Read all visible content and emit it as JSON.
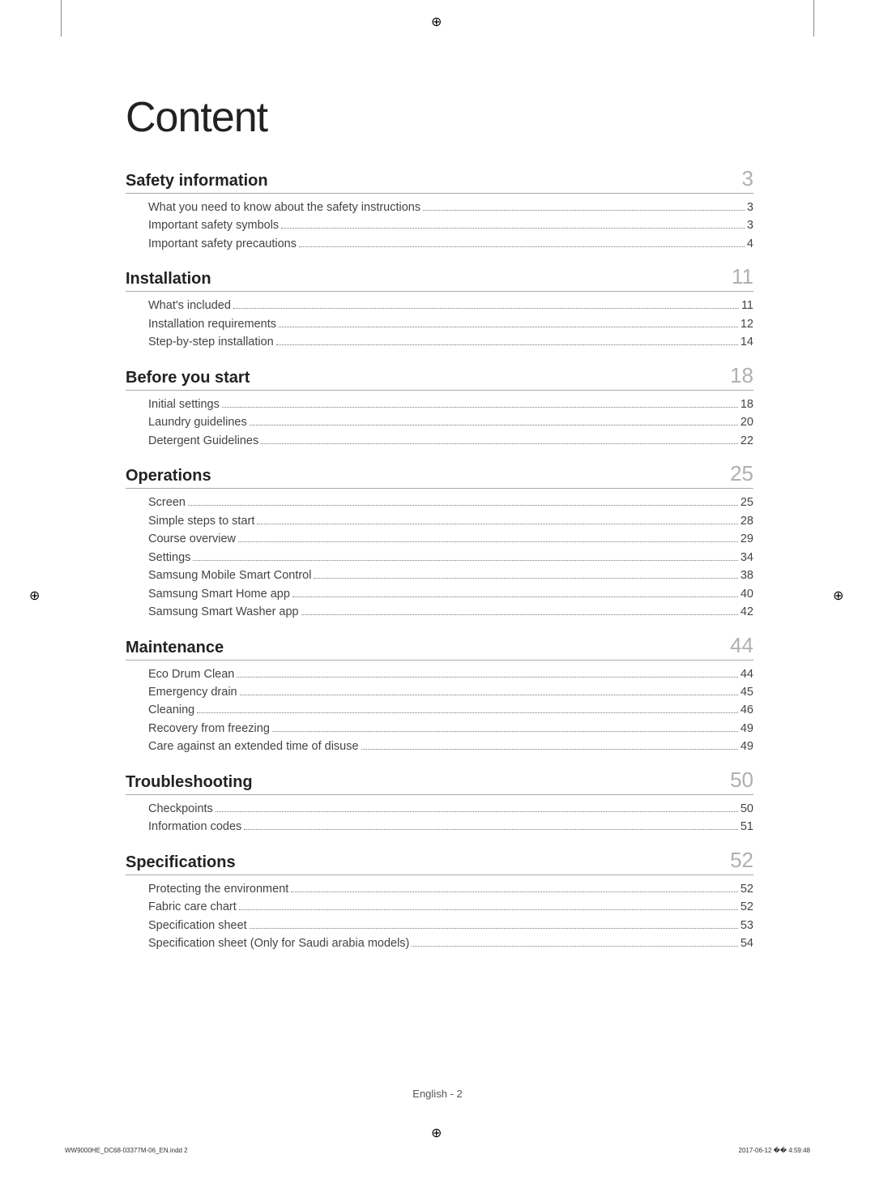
{
  "title": "Content",
  "sections": [
    {
      "title": "Safety information",
      "page": "3",
      "items": [
        {
          "label": "What you need to know about the safety instructions",
          "page": "3"
        },
        {
          "label": "Important safety symbols",
          "page": "3"
        },
        {
          "label": "Important safety precautions",
          "page": "4"
        }
      ]
    },
    {
      "title": "Installation",
      "page": "11",
      "items": [
        {
          "label": "What's included",
          "page": "11"
        },
        {
          "label": "Installation requirements",
          "page": "12"
        },
        {
          "label": "Step-by-step installation",
          "page": "14"
        }
      ]
    },
    {
      "title": "Before you start",
      "page": "18",
      "items": [
        {
          "label": "Initial settings",
          "page": "18"
        },
        {
          "label": "Laundry guidelines",
          "page": "20"
        },
        {
          "label": "Detergent Guidelines",
          "page": "22"
        }
      ]
    },
    {
      "title": "Operations",
      "page": "25",
      "items": [
        {
          "label": "Screen",
          "page": "25"
        },
        {
          "label": "Simple steps to start",
          "page": "28"
        },
        {
          "label": "Course overview",
          "page": "29"
        },
        {
          "label": "Settings",
          "page": "34"
        },
        {
          "label": "Samsung Mobile Smart Control",
          "page": "38"
        },
        {
          "label": "Samsung Smart Home app",
          "page": "40"
        },
        {
          "label": "Samsung Smart Washer app",
          "page": "42"
        }
      ]
    },
    {
      "title": "Maintenance",
      "page": "44",
      "items": [
        {
          "label": "Eco Drum Clean",
          "page": "44"
        },
        {
          "label": "Emergency drain",
          "page": "45"
        },
        {
          "label": "Cleaning",
          "page": "46"
        },
        {
          "label": "Recovery from freezing",
          "page": "49"
        },
        {
          "label": "Care against an extended time of disuse",
          "page": "49"
        }
      ]
    },
    {
      "title": "Troubleshooting",
      "page": "50",
      "items": [
        {
          "label": "Checkpoints",
          "page": "50"
        },
        {
          "label": "Information codes",
          "page": "51"
        }
      ]
    },
    {
      "title": "Specifications",
      "page": "52",
      "items": [
        {
          "label": "Protecting the environment",
          "page": "52"
        },
        {
          "label": "Fabric care chart",
          "page": "52"
        },
        {
          "label": "Specification sheet",
          "page": "53"
        },
        {
          "label": "Specification sheet (Only for Saudi arabia models)",
          "page": "54"
        }
      ]
    }
  ],
  "footer": "English - 2",
  "imprint_left": "WW9000HE_DC68-03377M-06_EN.indd   2",
  "imprint_right": "2017-06-12   �� 4:59:48",
  "colors": {
    "section_page": "#b0b0b0",
    "text": "#444444",
    "title": "#222222",
    "divider": "#aaaaaa"
  }
}
